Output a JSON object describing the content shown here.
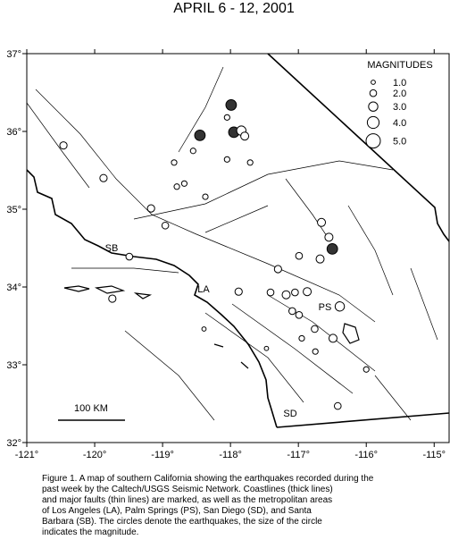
{
  "title": "APRIL 6 - 12, 2001",
  "map": {
    "xlim": [
      -121,
      -114.78
    ],
    "ylim": [
      32,
      37
    ],
    "xticks": [
      {
        "value": -121,
        "label": "-121°"
      },
      {
        "value": -120,
        "label": "-120°"
      },
      {
        "value": -119,
        "label": "-119°"
      },
      {
        "value": -118,
        "label": "-118°"
      },
      {
        "value": -117,
        "label": "-117°"
      },
      {
        "value": -116,
        "label": "-116°"
      },
      {
        "value": -115,
        "label": "-115°"
      }
    ],
    "yticks": [
      {
        "value": 32,
        "label": "32°"
      },
      {
        "value": 33,
        "label": "33°"
      },
      {
        "value": 34,
        "label": "34°"
      },
      {
        "value": 35,
        "label": "35°"
      },
      {
        "value": 36,
        "label": "36°"
      },
      {
        "value": 37,
        "label": "37°"
      }
    ],
    "legend_title": "MAGNITUDES",
    "legend": [
      {
        "value": 1,
        "label": "1.0"
      },
      {
        "value": 2,
        "label": "2.0"
      },
      {
        "value": 3,
        "label": "3.0"
      },
      {
        "value": 4,
        "label": "4.0"
      },
      {
        "value": 5,
        "label": "5.0"
      }
    ],
    "places": [
      "SB",
      "LA",
      "PS",
      "SD"
    ],
    "scale_label": "100 KM",
    "quakes": [
      {
        "lon": -117.99,
        "lat": 36.34,
        "mag": 3.5
      },
      {
        "lon": -118.45,
        "lat": 35.95,
        "mag": 3.5
      },
      {
        "lon": -117.95,
        "lat": 35.99,
        "mag": 3.5
      },
      {
        "lon": -117.84,
        "lat": 36.01,
        "mag": 3
      },
      {
        "lon": -117.79,
        "lat": 35.94,
        "mag": 2.5
      },
      {
        "lon": -120.46,
        "lat": 35.82,
        "mag": 2.2
      },
      {
        "lon": -119.87,
        "lat": 35.4,
        "mag": 2.2
      },
      {
        "lon": -119.17,
        "lat": 35.01,
        "mag": 2.2
      },
      {
        "lon": -118.96,
        "lat": 34.79,
        "mag": 2
      },
      {
        "lon": -116.66,
        "lat": 34.83,
        "mag": 2.5
      },
      {
        "lon": -116.55,
        "lat": 34.64,
        "mag": 2.5
      },
      {
        "lon": -116.5,
        "lat": 34.49,
        "mag": 3.5
      },
      {
        "lon": -116.68,
        "lat": 34.36,
        "mag": 2.5
      },
      {
        "lon": -116.99,
        "lat": 34.4,
        "mag": 2
      },
      {
        "lon": -117.3,
        "lat": 34.23,
        "mag": 2.2
      },
      {
        "lon": -119.49,
        "lat": 34.39,
        "mag": 2
      },
      {
        "lon": -119.74,
        "lat": 33.85,
        "mag": 2.2
      },
      {
        "lon": -117.88,
        "lat": 33.94,
        "mag": 2.2
      },
      {
        "lon": -117.41,
        "lat": 33.93,
        "mag": 2
      },
      {
        "lon": -117.18,
        "lat": 33.9,
        "mag": 2.5
      },
      {
        "lon": -117.05,
        "lat": 33.93,
        "mag": 2
      },
      {
        "lon": -116.87,
        "lat": 33.94,
        "mag": 2.5
      },
      {
        "lon": -116.39,
        "lat": 33.75,
        "mag": 3
      },
      {
        "lon": -117.09,
        "lat": 33.69,
        "mag": 2
      },
      {
        "lon": -116.99,
        "lat": 33.64,
        "mag": 2
      },
      {
        "lon": -116.76,
        "lat": 33.46,
        "mag": 2
      },
      {
        "lon": -116.49,
        "lat": 33.34,
        "mag": 2.5
      },
      {
        "lon": -116.42,
        "lat": 32.47,
        "mag": 2
      },
      {
        "lon": -116.0,
        "lat": 32.94,
        "mag": 1.5
      },
      {
        "lon": -118.55,
        "lat": 35.75,
        "mag": 1.5
      },
      {
        "lon": -118.83,
        "lat": 35.6,
        "mag": 1.5
      },
      {
        "lon": -118.79,
        "lat": 35.29,
        "mag": 1.5
      },
      {
        "lon": -118.68,
        "lat": 35.33,
        "mag": 1.5
      },
      {
        "lon": -118.37,
        "lat": 35.16,
        "mag": 1.5
      },
      {
        "lon": -118.05,
        "lat": 36.18,
        "mag": 1.5
      },
      {
        "lon": -118.05,
        "lat": 35.64,
        "mag": 1.5
      },
      {
        "lon": -117.71,
        "lat": 35.6,
        "mag": 1.5
      },
      {
        "lon": -118.39,
        "lat": 33.46,
        "mag": 1
      },
      {
        "lon": -117.47,
        "lat": 33.21,
        "mag": 1
      },
      {
        "lon": -116.95,
        "lat": 33.34,
        "mag": 1.5
      },
      {
        "lon": -116.75,
        "lat": 33.17,
        "mag": 1.5
      }
    ]
  },
  "caption": [
    "Figure 1. A map of southern California showing the earthquakes recorded during the",
    "past week by the Caltech/USGS Seismic Network.  Coastlines (thick lines)",
    "and major faults (thin lines) are marked, as well as the metropolitan areas",
    "of Los Angeles (LA), Palm Springs (PS), San Diego (SD), and Santa",
    "Barbara (SB).  The circles denote the earthquakes, the size of the circle",
    "indicates the magnitude."
  ]
}
